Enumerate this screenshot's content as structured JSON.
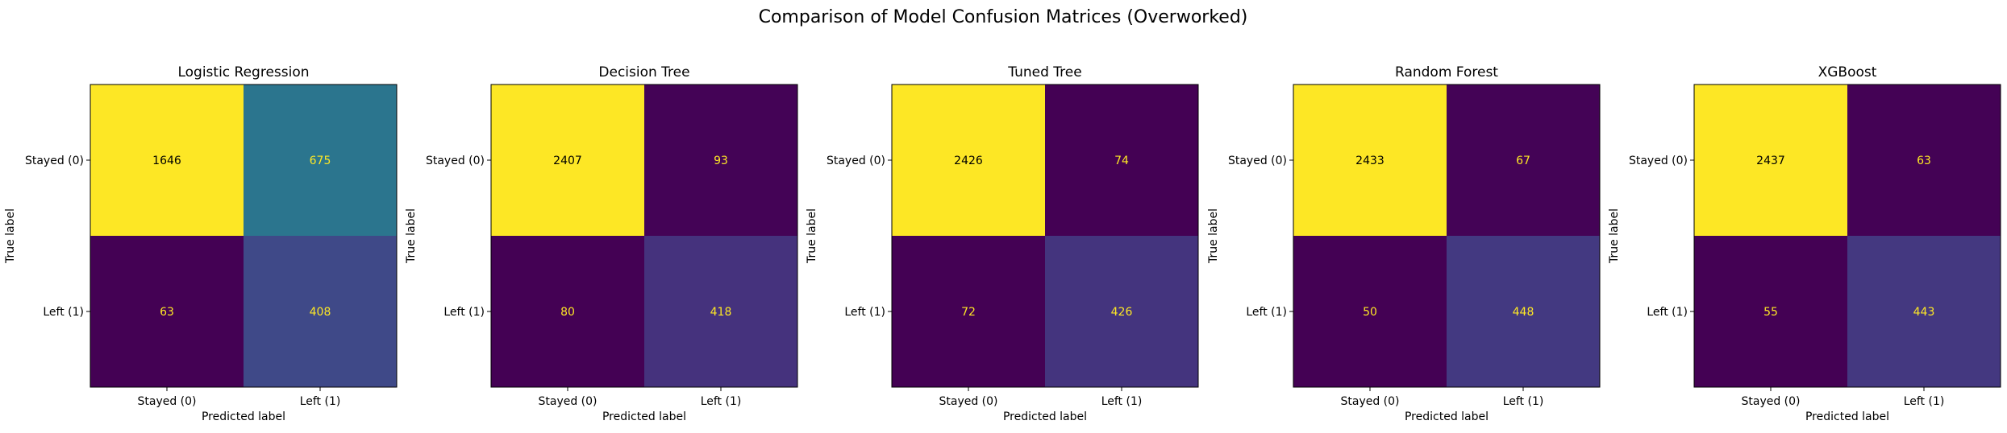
{
  "figure": {
    "title": "Comparison of Model Confusion Matrices (Overworked)"
  },
  "chart_data": [
    {
      "type": "heatmap",
      "title": "Logistic Regression",
      "xlabel": "Predicted label",
      "ylabel": "True label",
      "x_categories": [
        "Stayed (0)",
        "Left (1)"
      ],
      "y_categories": [
        "Stayed (0)",
        "Left (1)"
      ],
      "values": [
        [
          1646,
          675
        ],
        [
          63,
          408
        ]
      ],
      "grid": false
    },
    {
      "type": "heatmap",
      "title": "Decision Tree",
      "xlabel": "Predicted label",
      "ylabel": "True label",
      "x_categories": [
        "Stayed (0)",
        "Left (1)"
      ],
      "y_categories": [
        "Stayed (0)",
        "Left (1)"
      ],
      "values": [
        [
          2407,
          93
        ],
        [
          80,
          418
        ]
      ],
      "grid": false
    },
    {
      "type": "heatmap",
      "title": "Tuned Tree",
      "xlabel": "Predicted label",
      "ylabel": "True label",
      "x_categories": [
        "Stayed (0)",
        "Left (1)"
      ],
      "y_categories": [
        "Stayed (0)",
        "Left (1)"
      ],
      "values": [
        [
          2426,
          74
        ],
        [
          72,
          426
        ]
      ],
      "grid": false
    },
    {
      "type": "heatmap",
      "title": "Random Forest",
      "xlabel": "Predicted label",
      "ylabel": "True label",
      "x_categories": [
        "Stayed (0)",
        "Left (1)"
      ],
      "y_categories": [
        "Stayed (0)",
        "Left (1)"
      ],
      "values": [
        [
          2433,
          67
        ],
        [
          50,
          448
        ]
      ],
      "grid": false
    },
    {
      "type": "heatmap",
      "title": "XGBoost",
      "xlabel": "Predicted label",
      "ylabel": "True label",
      "x_categories": [
        "Stayed (0)",
        "Left (1)"
      ],
      "y_categories": [
        "Stayed (0)",
        "Left (1)"
      ],
      "values": [
        [
          2437,
          63
        ],
        [
          55,
          443
        ]
      ],
      "grid": false
    }
  ],
  "colors": {
    "colormap": "viridis",
    "text_on_dark": "#fde725",
    "text_on_light": "#000000"
  }
}
